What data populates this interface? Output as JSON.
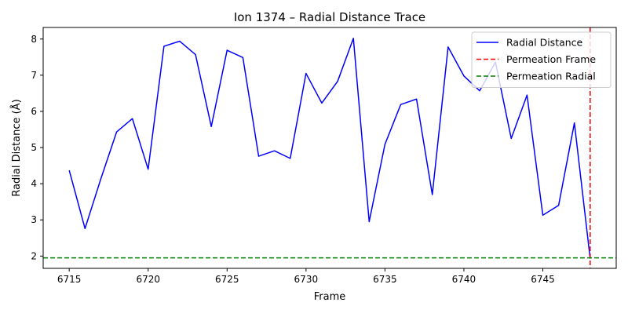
{
  "chart_data": {
    "type": "line",
    "title": "Ion 1374 – Radial Distance Trace",
    "xlabel": "Frame",
    "ylabel": "Radial Distance (Å)",
    "xlim": [
      6713.35,
      6749.65
    ],
    "ylim": [
      1.66,
      8.32
    ],
    "x_ticks": [
      6715,
      6720,
      6725,
      6730,
      6735,
      6740,
      6745
    ],
    "y_ticks": [
      2,
      3,
      4,
      5,
      6,
      7,
      8
    ],
    "grid": false,
    "legend_position": "top-right",
    "series": [
      {
        "name": "Radial Distance",
        "color": "#0000ff",
        "style": "solid",
        "x": [
          6715,
          6716,
          6717,
          6718,
          6719,
          6720,
          6721,
          6722,
          6723,
          6724,
          6725,
          6726,
          6727,
          6728,
          6729,
          6730,
          6731,
          6732,
          6733,
          6734,
          6735,
          6736,
          6737,
          6738,
          6739,
          6740,
          6741,
          6742,
          6743,
          6744,
          6745,
          6746,
          6747,
          6748
        ],
        "y": [
          4.37,
          2.76,
          4.13,
          5.43,
          5.8,
          4.4,
          7.8,
          7.94,
          7.57,
          5.58,
          7.69,
          7.49,
          4.76,
          4.91,
          4.7,
          7.05,
          6.23,
          6.83,
          8.02,
          2.95,
          5.09,
          6.19,
          6.34,
          3.7,
          7.78,
          6.98,
          6.57,
          7.36,
          5.25,
          6.45,
          3.13,
          3.4,
          5.68,
          1.93
        ]
      }
    ],
    "reference_lines": [
      {
        "name": "Permeation Frame",
        "orientation": "vertical",
        "x": 6748,
        "color": "#ff0000",
        "style": "dashed"
      },
      {
        "name": "Permeation Radial",
        "orientation": "horizontal",
        "y": 1.95,
        "color": "#008000",
        "style": "dashed"
      }
    ]
  }
}
